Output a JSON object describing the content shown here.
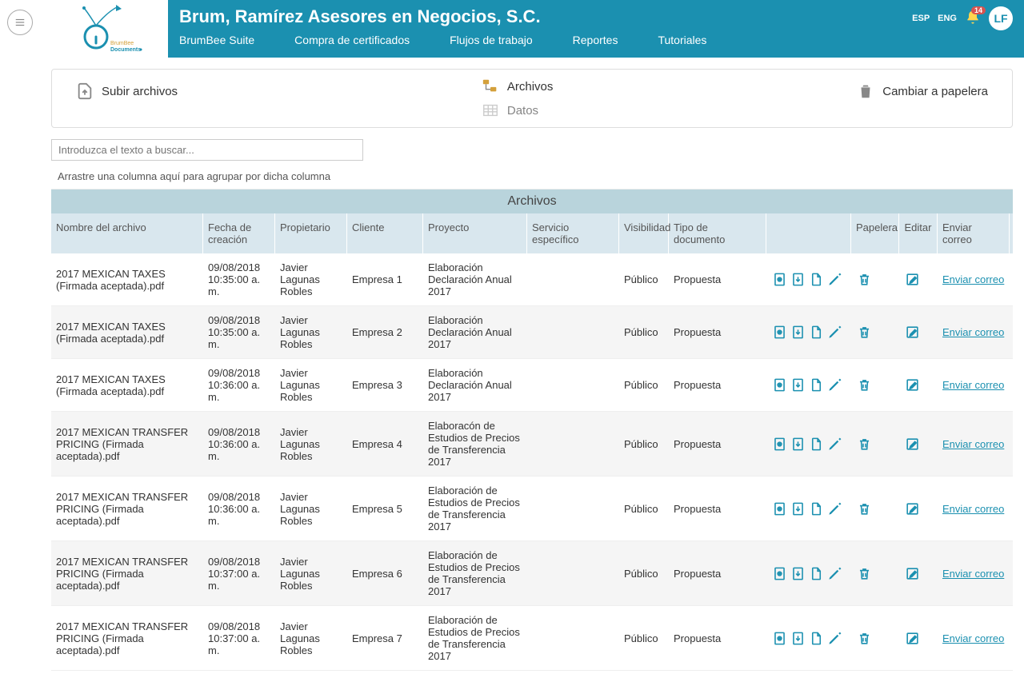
{
  "colors": {
    "primary": "#1b90b0",
    "header_col": "#d9e7ee",
    "title_bar": "#b9d4dc"
  },
  "company": "Brum, Ramírez Asesores en Negocios, S.C.",
  "lang": {
    "esp": "ESP",
    "eng": "ENG"
  },
  "notifications": "14",
  "user_initials": "LF",
  "nav": [
    "BrumBee Suite",
    "Compra de certificados",
    "Flujos de trabajo",
    "Reportes",
    "Tutoriales"
  ],
  "toolbar": {
    "upload": "Subir archivos",
    "archivos": "Archivos",
    "datos": "Datos",
    "trash": "Cambiar a papelera"
  },
  "search_placeholder": "Introduzca el texto a buscar...",
  "group_hint": "Arrastre una columna aquí para agrupar por dicha columna",
  "grid_title": "Archivos",
  "columns": {
    "name": "Nombre del archivo",
    "date": "Fecha de creación",
    "owner": "Propietario",
    "client": "Cliente",
    "project": "Proyecto",
    "service": "Servicio específico",
    "vis": "Visibilidad",
    "type": "Tipo de documento",
    "trash": "Papelera",
    "edit": "Editar",
    "mail": "Enviar correo"
  },
  "mail_link": "Enviar correo",
  "rows": [
    {
      "name": "2017 MEXICAN TAXES (Firmada aceptada).pdf",
      "date": "09/08/2018 10:35:00 a. m.",
      "owner": "Javier Lagunas Robles",
      "client": "Empresa 1",
      "project": "Elaboración Declaración Anual 2017",
      "vis": "Público",
      "type": "Propuesta"
    },
    {
      "name": "2017 MEXICAN TAXES (Firmada aceptada).pdf",
      "date": "09/08/2018 10:35:00 a. m.",
      "owner": "Javier Lagunas Robles",
      "client": "Empresa 2",
      "project": "Elaboración Declaración Anual 2017",
      "vis": "Público",
      "type": "Propuesta"
    },
    {
      "name": "2017 MEXICAN TAXES (Firmada aceptada).pdf",
      "date": "09/08/2018 10:36:00 a. m.",
      "owner": "Javier Lagunas Robles",
      "client": "Empresa 3",
      "project": "Elaboración Declaración Anual 2017",
      "vis": "Público",
      "type": "Propuesta"
    },
    {
      "name": "2017 MEXICAN TRANSFER PRICING (Firmada aceptada).pdf",
      "date": "09/08/2018 10:36:00 a. m.",
      "owner": "Javier Lagunas Robles",
      "client": "Empresa 4",
      "project": "Elaboracón de Estudios de Precios de Transferencia 2017",
      "vis": "Público",
      "type": "Propuesta"
    },
    {
      "name": "2017 MEXICAN TRANSFER PRICING (Firmada aceptada).pdf",
      "date": "09/08/2018 10:36:00 a. m.",
      "owner": "Javier Lagunas Robles",
      "client": "Empresa 5",
      "project": "Elaboración de Estudios de Precios de Transferencia 2017",
      "vis": "Público",
      "type": "Propuesta"
    },
    {
      "name": "2017 MEXICAN TRANSFER PRICING (Firmada aceptada).pdf",
      "date": "09/08/2018 10:37:00 a. m.",
      "owner": "Javier Lagunas Robles",
      "client": "Empresa 6",
      "project": "Elaboración de Estudios de Precios de Transferencia 2017",
      "vis": "Público",
      "type": "Propuesta"
    },
    {
      "name": "2017 MEXICAN TRANSFER PRICING (Firmada aceptada).pdf",
      "date": "09/08/2018 10:37:00 a. m.",
      "owner": "Javier Lagunas Robles",
      "client": "Empresa 7",
      "project": "Elaboración de Estudios de Precios de Transferencia 2017",
      "vis": "Público",
      "type": "Propuesta"
    }
  ]
}
